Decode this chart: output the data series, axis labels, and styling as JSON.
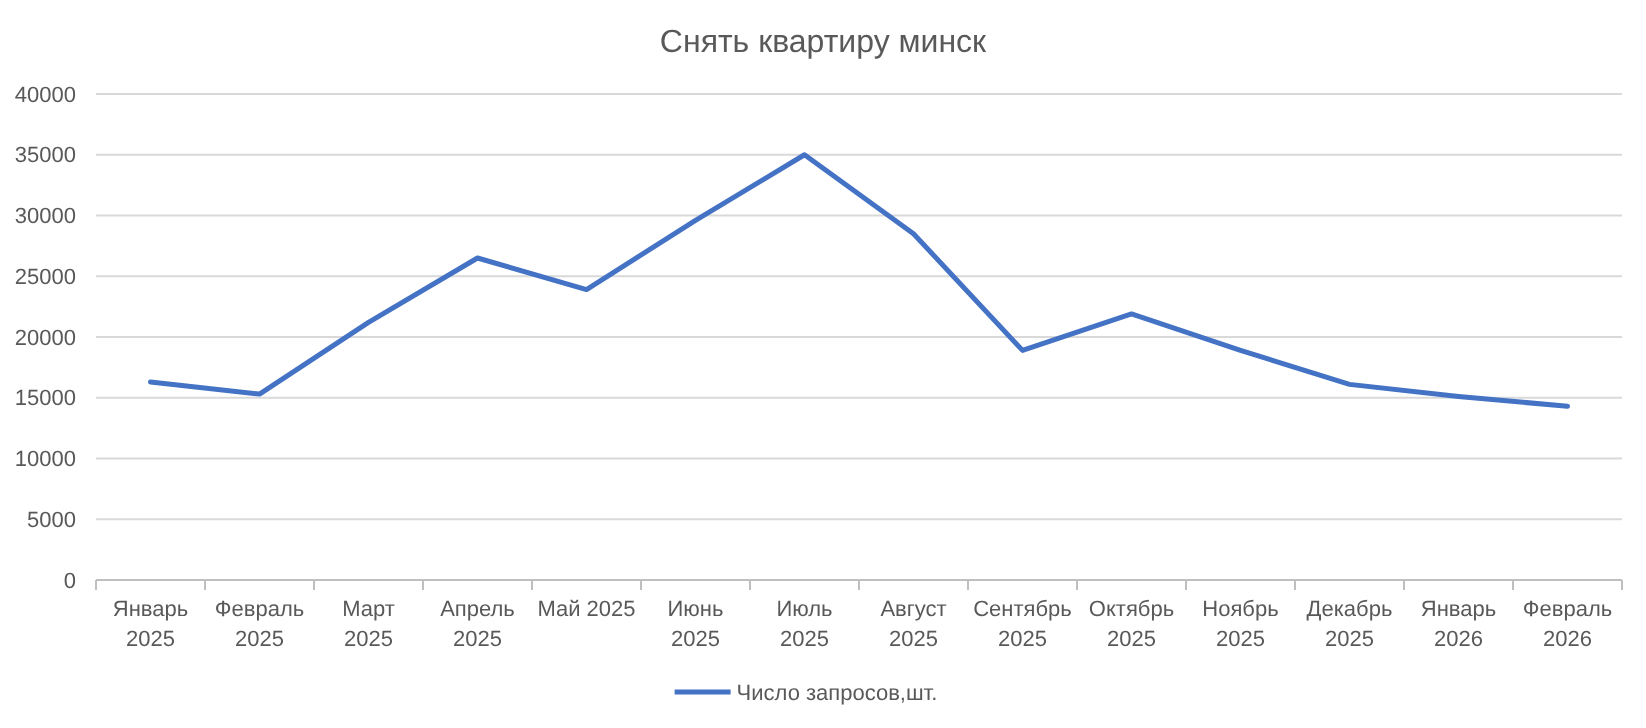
{
  "chart_data": {
    "type": "line",
    "title": "Снять квартиру минск",
    "categories": [
      "Январь 2025",
      "Февраль 2025",
      "Март 2025",
      "Апрель 2025",
      "Май 2025",
      "Июнь 2025",
      "Июль 2025",
      "Август 2025",
      "Сентябрь 2025",
      "Октябрь 2025",
      "Ноябрь 2025",
      "Декабрь 2025",
      "Январь 2026",
      "Февраль 2026"
    ],
    "series": [
      {
        "name": "Число запросов,шт.",
        "color": "#4472c4",
        "values": [
          16300,
          15300,
          21200,
          26500,
          23900,
          29600,
          35000,
          28500,
          18900,
          21900,
          18900,
          16100,
          15100,
          14300
        ]
      }
    ],
    "ylim": [
      0,
      40000
    ],
    "yticks": [
      0,
      5000,
      10000,
      15000,
      20000,
      25000,
      30000,
      35000,
      40000
    ],
    "grid": "y",
    "legend": "bottom",
    "marker": "none",
    "line_style": "solid"
  }
}
